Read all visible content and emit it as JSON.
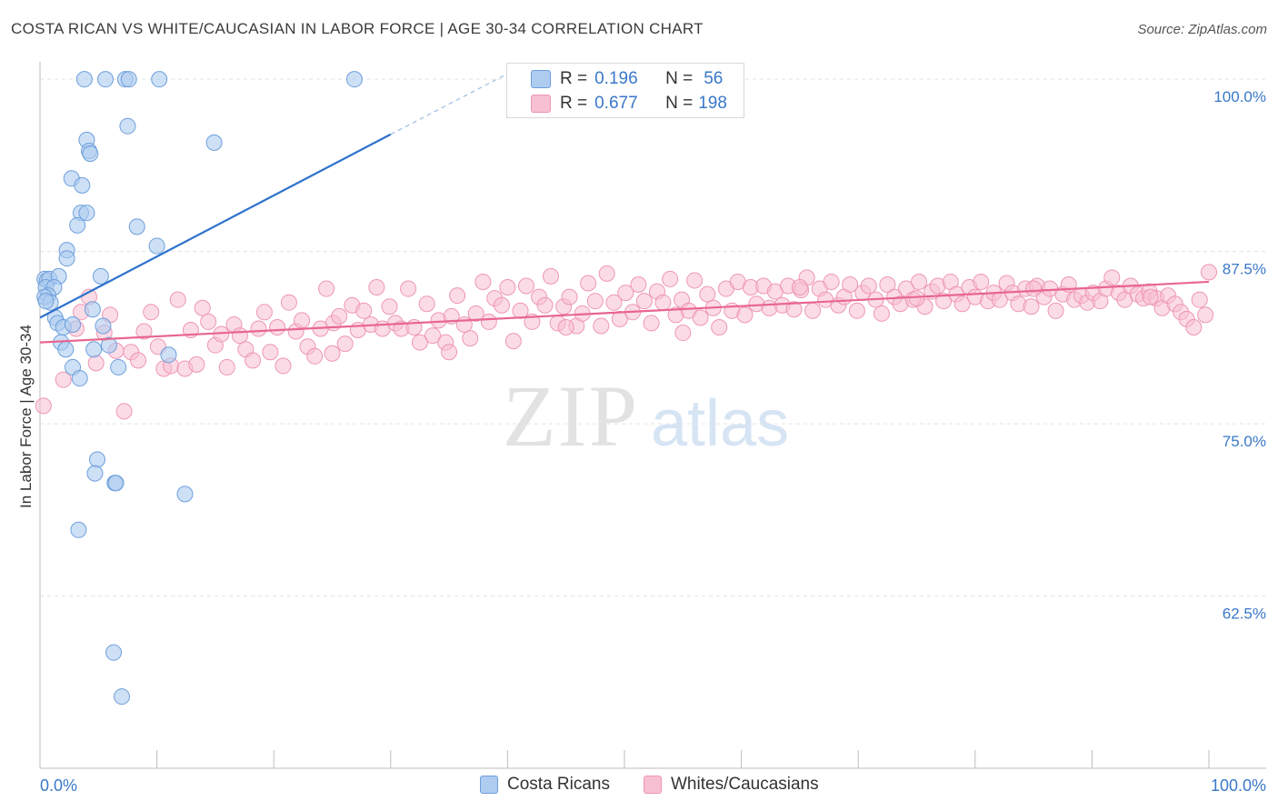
{
  "header": {
    "title": "COSTA RICAN VS WHITE/CAUCASIAN IN LABOR FORCE | AGE 30-34 CORRELATION CHART",
    "source": "Source: ZipAtlas.com"
  },
  "watermark": {
    "zip": "ZIP",
    "atlas": "atlas"
  },
  "legend_inset": {
    "rows": [
      {
        "r_label": "R =",
        "r_value": "0.196",
        "n_label": "N =",
        "n_value": "56"
      },
      {
        "r_label": "R =",
        "r_value": "0.677",
        "n_label": "N =",
        "n_value": "198"
      }
    ]
  },
  "legend_bottom": {
    "items": [
      "Costa Ricans",
      "Whites/Caucasians"
    ]
  },
  "chart_data": {
    "type": "scatter",
    "title": "COSTA RICAN VS WHITE/CAUCASIAN IN LABOR FORCE | AGE 30-34 CORRELATION CHART",
    "xlabel": "",
    "ylabel": "In Labor Force | Age 30-34",
    "xlim": [
      0,
      100
    ],
    "ylim": [
      50,
      101
    ],
    "x_tick_labels": [
      "0.0%",
      "100.0%"
    ],
    "y_ticks": [
      62.5,
      75.0,
      87.5,
      100.0
    ],
    "y_tick_labels": [
      "62.5%",
      "75.0%",
      "87.5%",
      "100.0%"
    ],
    "grid": true,
    "legend_position": "top-center",
    "colors": {
      "costa_rican_fill": "#aecbf0",
      "costa_rican_stroke": "#6d9fdc",
      "costa_rican_line": "#2f72cc",
      "white_fill": "#f7bfd2",
      "white_stroke": "#ee96b5",
      "white_line": "#e8668f",
      "tick_label": "#3a78c9",
      "grid": "#e3e3e3"
    },
    "series": [
      {
        "name": "Costa Ricans",
        "trend": {
          "x": [
            0,
            30
          ],
          "y": [
            82.7,
            96.0
          ],
          "dash_to": {
            "x": 40,
            "y": 100.4
          }
        },
        "points": [
          [
            3.8,
            100.0
          ],
          [
            5.6,
            100.0
          ],
          [
            7.3,
            100.0
          ],
          [
            7.6,
            100.0
          ],
          [
            10.2,
            100.0
          ],
          [
            26.9,
            100.0
          ],
          [
            7.5,
            96.6
          ],
          [
            4.0,
            95.6
          ],
          [
            4.2,
            94.8
          ],
          [
            4.3,
            94.6
          ],
          [
            14.9,
            95.4
          ],
          [
            2.7,
            92.8
          ],
          [
            3.6,
            92.3
          ],
          [
            3.5,
            90.3
          ],
          [
            4.0,
            90.3
          ],
          [
            3.2,
            89.4
          ],
          [
            8.3,
            89.3
          ],
          [
            10.0,
            87.9
          ],
          [
            2.3,
            87.6
          ],
          [
            2.3,
            87.0
          ],
          [
            0.4,
            85.5
          ],
          [
            0.6,
            85.4
          ],
          [
            0.8,
            85.5
          ],
          [
            1.6,
            85.7
          ],
          [
            5.2,
            85.7
          ],
          [
            0.5,
            84.9
          ],
          [
            1.2,
            84.9
          ],
          [
            0.7,
            84.3
          ],
          [
            0.4,
            84.2
          ],
          [
            0.9,
            83.8
          ],
          [
            0.5,
            83.9
          ],
          [
            4.5,
            83.3
          ],
          [
            1.3,
            82.7
          ],
          [
            1.5,
            82.3
          ],
          [
            2.0,
            82.0
          ],
          [
            2.8,
            82.2
          ],
          [
            5.4,
            82.1
          ],
          [
            1.8,
            80.9
          ],
          [
            2.2,
            80.4
          ],
          [
            4.6,
            80.4
          ],
          [
            5.9,
            80.7
          ],
          [
            11.0,
            80.0
          ],
          [
            2.8,
            79.1
          ],
          [
            3.4,
            78.3
          ],
          [
            6.7,
            79.1
          ],
          [
            4.9,
            72.4
          ],
          [
            4.7,
            71.4
          ],
          [
            6.4,
            70.7
          ],
          [
            6.5,
            70.7
          ],
          [
            12.4,
            69.9
          ],
          [
            3.3,
            67.3
          ],
          [
            6.3,
            58.4
          ],
          [
            7.0,
            55.2
          ]
        ]
      },
      {
        "name": "Whites/Caucasians",
        "trend": {
          "x": [
            0,
            100
          ],
          "y": [
            80.9,
            85.3
          ]
        },
        "points": [
          [
            0.3,
            76.3
          ],
          [
            2.0,
            78.2
          ],
          [
            3.1,
            81.9
          ],
          [
            3.5,
            83.1
          ],
          [
            4.2,
            84.2
          ],
          [
            4.8,
            79.4
          ],
          [
            5.5,
            81.6
          ],
          [
            6.0,
            82.9
          ],
          [
            6.5,
            80.3
          ],
          [
            7.2,
            75.9
          ],
          [
            7.8,
            80.2
          ],
          [
            8.4,
            79.6
          ],
          [
            8.9,
            81.7
          ],
          [
            9.5,
            83.1
          ],
          [
            10.1,
            80.6
          ],
          [
            10.6,
            79.0
          ],
          [
            11.2,
            79.2
          ],
          [
            11.8,
            84.0
          ],
          [
            12.4,
            79.0
          ],
          [
            12.9,
            81.8
          ],
          [
            13.4,
            79.3
          ],
          [
            13.9,
            83.4
          ],
          [
            14.4,
            82.4
          ],
          [
            15.0,
            80.7
          ],
          [
            15.5,
            81.5
          ],
          [
            16.0,
            79.1
          ],
          [
            16.6,
            82.2
          ],
          [
            17.1,
            81.4
          ],
          [
            17.6,
            80.4
          ],
          [
            18.2,
            79.6
          ],
          [
            18.7,
            81.9
          ],
          [
            19.2,
            83.1
          ],
          [
            19.7,
            80.2
          ],
          [
            20.3,
            82.0
          ],
          [
            20.8,
            79.2
          ],
          [
            21.3,
            83.8
          ],
          [
            21.9,
            81.7
          ],
          [
            22.4,
            82.5
          ],
          [
            22.9,
            80.6
          ],
          [
            23.5,
            79.9
          ],
          [
            24.0,
            81.9
          ],
          [
            24.5,
            84.8
          ],
          [
            25.1,
            82.3
          ],
          [
            25.6,
            82.8
          ],
          [
            26.1,
            80.8
          ],
          [
            26.7,
            83.6
          ],
          [
            27.2,
            81.8
          ],
          [
            27.7,
            83.2
          ],
          [
            28.3,
            82.2
          ],
          [
            28.8,
            84.9
          ],
          [
            29.3,
            81.9
          ],
          [
            29.9,
            83.5
          ],
          [
            30.4,
            82.3
          ],
          [
            30.9,
            81.9
          ],
          [
            31.5,
            84.8
          ],
          [
            32.0,
            82.0
          ],
          [
            32.5,
            80.9
          ],
          [
            33.1,
            83.7
          ],
          [
            33.6,
            81.4
          ],
          [
            34.1,
            82.5
          ],
          [
            34.7,
            80.9
          ],
          [
            35.2,
            82.8
          ],
          [
            35.7,
            84.3
          ],
          [
            36.3,
            82.2
          ],
          [
            36.8,
            81.2
          ],
          [
            37.3,
            83.0
          ],
          [
            37.9,
            85.3
          ],
          [
            38.4,
            82.4
          ],
          [
            38.9,
            84.1
          ],
          [
            39.5,
            83.6
          ],
          [
            40.0,
            84.9
          ],
          [
            40.5,
            81.0
          ],
          [
            41.1,
            83.2
          ],
          [
            41.6,
            85.0
          ],
          [
            42.1,
            82.4
          ],
          [
            42.7,
            84.2
          ],
          [
            43.2,
            83.6
          ],
          [
            43.7,
            85.7
          ],
          [
            44.3,
            82.3
          ],
          [
            44.8,
            83.5
          ],
          [
            45.3,
            84.2
          ],
          [
            45.9,
            82.1
          ],
          [
            46.4,
            83.0
          ],
          [
            46.9,
            85.2
          ],
          [
            47.5,
            83.9
          ],
          [
            48.0,
            82.1
          ],
          [
            48.5,
            85.9
          ],
          [
            49.1,
            83.8
          ],
          [
            49.6,
            82.6
          ],
          [
            50.1,
            84.5
          ],
          [
            50.7,
            83.1
          ],
          [
            51.2,
            85.1
          ],
          [
            51.7,
            83.9
          ],
          [
            52.3,
            82.3
          ],
          [
            52.8,
            84.6
          ],
          [
            53.3,
            83.8
          ],
          [
            53.9,
            85.5
          ],
          [
            54.4,
            82.9
          ],
          [
            54.9,
            84.0
          ],
          [
            55.5,
            83.2
          ],
          [
            56.0,
            85.4
          ],
          [
            56.5,
            82.7
          ],
          [
            57.1,
            84.4
          ],
          [
            57.6,
            83.4
          ],
          [
            58.1,
            82.0
          ],
          [
            58.7,
            84.8
          ],
          [
            59.2,
            83.2
          ],
          [
            59.7,
            85.3
          ],
          [
            60.3,
            82.9
          ],
          [
            60.8,
            84.9
          ],
          [
            61.3,
            83.7
          ],
          [
            61.9,
            85.0
          ],
          [
            62.4,
            83.4
          ],
          [
            62.9,
            84.6
          ],
          [
            63.5,
            83.6
          ],
          [
            64.0,
            85.0
          ],
          [
            64.5,
            83.3
          ],
          [
            65.1,
            84.7
          ],
          [
            65.6,
            85.6
          ],
          [
            66.1,
            83.2
          ],
          [
            66.7,
            84.8
          ],
          [
            67.2,
            84.0
          ],
          [
            67.7,
            85.3
          ],
          [
            68.3,
            83.6
          ],
          [
            68.8,
            84.2
          ],
          [
            69.3,
            85.1
          ],
          [
            69.9,
            83.2
          ],
          [
            70.4,
            84.5
          ],
          [
            70.9,
            85.0
          ],
          [
            71.5,
            84.0
          ],
          [
            72.0,
            83.0
          ],
          [
            72.5,
            85.1
          ],
          [
            73.1,
            84.2
          ],
          [
            73.6,
            83.7
          ],
          [
            74.1,
            84.8
          ],
          [
            74.7,
            84.0
          ],
          [
            75.2,
            85.3
          ],
          [
            75.7,
            83.5
          ],
          [
            76.3,
            84.6
          ],
          [
            76.8,
            85.0
          ],
          [
            77.3,
            83.9
          ],
          [
            77.9,
            85.3
          ],
          [
            78.4,
            84.4
          ],
          [
            78.9,
            83.7
          ],
          [
            79.5,
            84.9
          ],
          [
            80.0,
            84.2
          ],
          [
            80.5,
            85.3
          ],
          [
            81.1,
            83.9
          ],
          [
            81.6,
            84.5
          ],
          [
            82.1,
            84.0
          ],
          [
            82.7,
            85.2
          ],
          [
            83.2,
            84.5
          ],
          [
            83.7,
            83.7
          ],
          [
            84.3,
            84.8
          ],
          [
            84.8,
            83.5
          ],
          [
            85.3,
            85.0
          ],
          [
            85.9,
            84.2
          ],
          [
            86.4,
            84.8
          ],
          [
            86.9,
            83.2
          ],
          [
            87.5,
            84.4
          ],
          [
            88.0,
            85.1
          ],
          [
            88.5,
            84.0
          ],
          [
            89.1,
            84.3
          ],
          [
            89.6,
            83.8
          ],
          [
            90.1,
            84.5
          ],
          [
            90.7,
            83.9
          ],
          [
            91.2,
            84.8
          ],
          [
            91.7,
            85.6
          ],
          [
            92.3,
            84.5
          ],
          [
            92.8,
            84.0
          ],
          [
            93.3,
            85.0
          ],
          [
            93.9,
            84.4
          ],
          [
            94.4,
            84.1
          ],
          [
            94.9,
            84.6
          ],
          [
            95.5,
            84.1
          ],
          [
            96.0,
            83.4
          ],
          [
            96.5,
            84.3
          ],
          [
            97.1,
            83.7
          ],
          [
            97.6,
            83.1
          ],
          [
            98.1,
            82.6
          ],
          [
            98.7,
            82.0
          ],
          [
            99.2,
            84.0
          ],
          [
            99.7,
            82.9
          ],
          [
            100.0,
            86.0
          ],
          [
            45.0,
            82.0
          ],
          [
            55.0,
            81.6
          ],
          [
            65.0,
            84.9
          ],
          [
            75.0,
            84.1
          ],
          [
            85.0,
            84.8
          ],
          [
            95.0,
            84.2
          ],
          [
            35.0,
            80.2
          ],
          [
            25.0,
            80.1
          ]
        ]
      }
    ]
  }
}
